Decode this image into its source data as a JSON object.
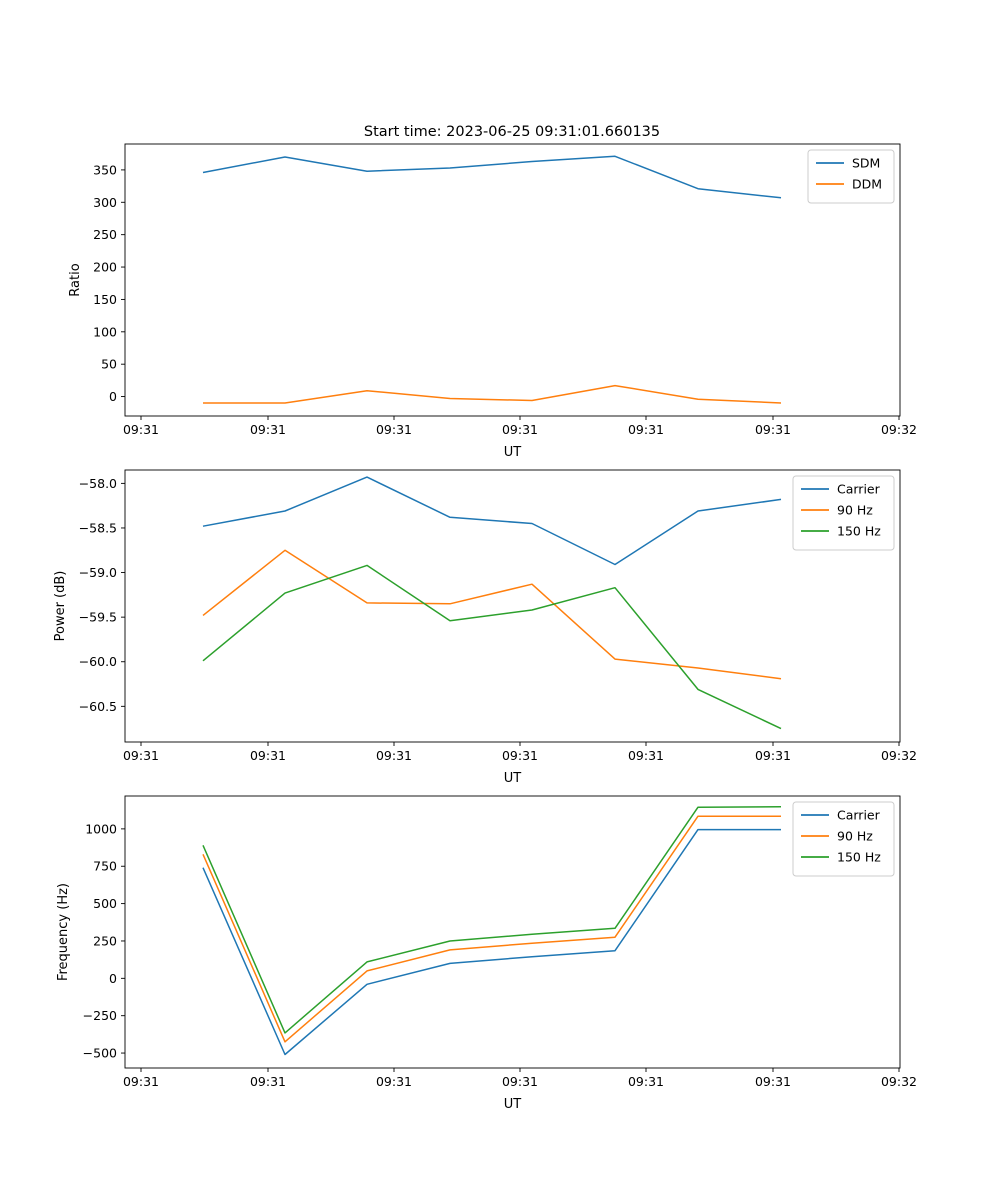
{
  "figure": {
    "title": "Start time: 2023-06-25 09:31:01.660135"
  },
  "chart_data": [
    {
      "type": "line",
      "title": "Start time: 2023-06-25 09:31:01.660135",
      "xlabel": "UT",
      "ylabel": "Ratio",
      "x_tick_labels": [
        "09:31",
        "09:31",
        "09:31",
        "09:31",
        "09:31",
        "09:31",
        "09:32"
      ],
      "y_ticks": [
        0,
        50,
        100,
        150,
        200,
        250,
        300,
        350
      ],
      "ylim": [
        -30,
        390
      ],
      "grid": false,
      "legend": "top-right",
      "series": [
        {
          "name": "SDM",
          "color": "#1f77b4",
          "values": [
            346,
            370,
            348,
            353,
            363,
            371,
            321,
            307
          ]
        },
        {
          "name": "DDM",
          "color": "#ff7f0e",
          "values": [
            -10,
            -10,
            9,
            -3,
            -6,
            17,
            -4,
            -10
          ]
        }
      ]
    },
    {
      "type": "line",
      "title": "",
      "xlabel": "UT",
      "ylabel": "Power (dB)",
      "x_tick_labels": [
        "09:31",
        "09:31",
        "09:31",
        "09:31",
        "09:31",
        "09:31",
        "09:32"
      ],
      "y_ticks": [
        -60.5,
        -60.0,
        -59.5,
        -59.0,
        -58.5,
        -58.0
      ],
      "y_tick_labels": [
        "−60.5",
        "−60.0",
        "−59.5",
        "−59.0",
        "−58.5",
        "−58.0"
      ],
      "ylim": [
        -60.9,
        -57.85
      ],
      "grid": false,
      "legend": "top-right",
      "series": [
        {
          "name": "Carrier",
          "color": "#1f77b4",
          "values": [
            -58.48,
            -58.31,
            -57.93,
            -58.38,
            -58.45,
            -58.91,
            -58.31,
            -58.18
          ]
        },
        {
          "name": "90 Hz",
          "color": "#ff7f0e",
          "values": [
            -59.48,
            -58.75,
            -59.34,
            -59.35,
            -59.13,
            -59.97,
            -60.07,
            -60.19
          ]
        },
        {
          "name": "150 Hz",
          "color": "#2ca02c",
          "values": [
            -59.99,
            -59.23,
            -58.92,
            -59.54,
            -59.42,
            -59.17,
            -60.31,
            -60.75
          ]
        }
      ]
    },
    {
      "type": "line",
      "title": "",
      "xlabel": "UT",
      "ylabel": "Frequency (Hz)",
      "x_tick_labels": [
        "09:31",
        "09:31",
        "09:31",
        "09:31",
        "09:31",
        "09:31",
        "09:32"
      ],
      "y_ticks": [
        -500,
        -250,
        0,
        250,
        500,
        750,
        1000
      ],
      "y_tick_labels": [
        "−500",
        "−250",
        "0",
        "250",
        "500",
        "750",
        "1000"
      ],
      "ylim": [
        -600,
        1220
      ],
      "grid": false,
      "legend": "top-right",
      "series": [
        {
          "name": "Carrier",
          "color": "#1f77b4",
          "values": [
            740,
            -510,
            -40,
            100,
            145,
            185,
            995,
            995
          ]
        },
        {
          "name": "90 Hz",
          "color": "#ff7f0e",
          "values": [
            830,
            -425,
            50,
            190,
            235,
            275,
            1085,
            1085
          ]
        },
        {
          "name": "150 Hz",
          "color": "#2ca02c",
          "values": [
            890,
            -365,
            110,
            250,
            295,
            335,
            1145,
            1148
          ]
        }
      ]
    }
  ]
}
